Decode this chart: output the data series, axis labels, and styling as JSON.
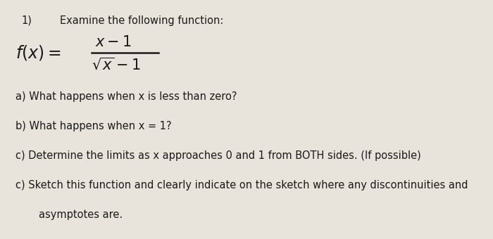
{
  "background_color": "#e8e4dc",
  "title_number": "1)",
  "title_text": "Examine the following function:",
  "line_a": "a) What happens when x is less than zero?",
  "line_b": "b) What happens when x = 1?",
  "line_c1": "c) Determine the limits as x approaches 0 and 1 from BOTH sides. (If possible)",
  "line_c2": "c) Sketch this function and clearly indicate on the sketch where any discontinuities and",
  "line_c2b": "asymptotes are.",
  "font_size_title": 10.5,
  "font_size_body": 10.5,
  "text_color": "#1a1a1a"
}
